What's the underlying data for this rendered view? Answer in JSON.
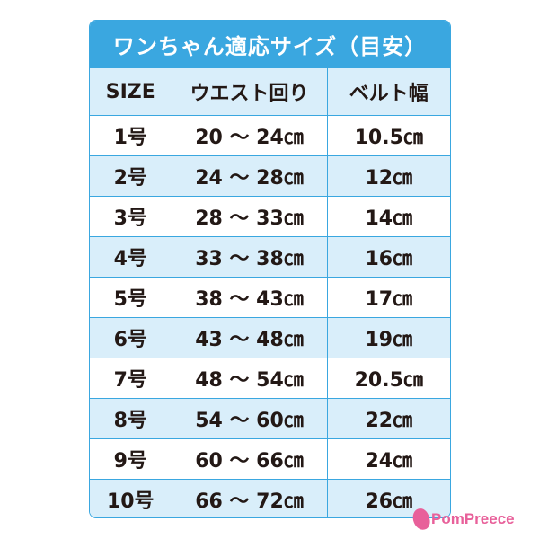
{
  "title": "ワンちゃん適応サイズ（目安）",
  "headers": [
    "SIZE",
    "ウエスト回り",
    "ベルト幅"
  ],
  "rows": [
    [
      "1号",
      "20 〜 24㎝",
      "10.5㎝"
    ],
    [
      "2号",
      "24 〜 28㎝",
      "12㎝"
    ],
    [
      "3号",
      "28 〜 33㎝",
      "14㎝"
    ],
    [
      "4号",
      "33 〜 38㎝",
      "16㎝"
    ],
    [
      "5号",
      "38 〜 43㎝",
      "17㎝"
    ],
    [
      "6号",
      "43 〜 48㎝",
      "19㎝"
    ],
    [
      "7号",
      "48 〜 54㎝",
      "20.5㎝"
    ],
    [
      "8号",
      "54 〜 60㎝",
      "22㎝"
    ],
    [
      "9号",
      "60 〜 66㎝",
      "24㎝"
    ],
    [
      "10号",
      "66 〜 72㎝",
      "26㎝"
    ]
  ],
  "logo": "PomPreece",
  "colors": {
    "accent": "#3aa7e0",
    "row_alt": "#d9eefa",
    "logo": "#e8609a",
    "text": "#231815"
  }
}
